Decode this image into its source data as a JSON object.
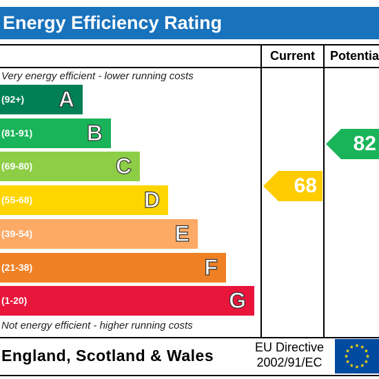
{
  "title": "Energy Efficiency Rating",
  "columns": {
    "current": "Current",
    "potential": "Potential"
  },
  "top_note": "Very energy efficient - lower running costs",
  "bottom_note": "Not energy efficient - higher running costs",
  "bands": [
    {
      "letter": "A",
      "range": "(92+)",
      "color": "#008054"
    },
    {
      "letter": "B",
      "range": "(81-91)",
      "color": "#19b459"
    },
    {
      "letter": "C",
      "range": "(69-80)",
      "color": "#8dce46"
    },
    {
      "letter": "D",
      "range": "(55-68)",
      "color": "#ffd500"
    },
    {
      "letter": "E",
      "range": "(39-54)",
      "color": "#fcaa65"
    },
    {
      "letter": "F",
      "range": "(21-38)",
      "color": "#ef8023"
    },
    {
      "letter": "G",
      "range": "(1-20)",
      "color": "#e9153b"
    }
  ],
  "current_rating": {
    "value": "68",
    "color": "#ffcc00"
  },
  "potential_rating": {
    "value": "82",
    "color": "#19b459"
  },
  "footer": {
    "country": "England, Scotland & Wales",
    "directive_line1": "EU Directive",
    "directive_line2": "2002/91/EC"
  },
  "eu_flag": {
    "background": "#004a9f",
    "star_color": "#ffdd00",
    "icon": "eu-flag-icon"
  }
}
